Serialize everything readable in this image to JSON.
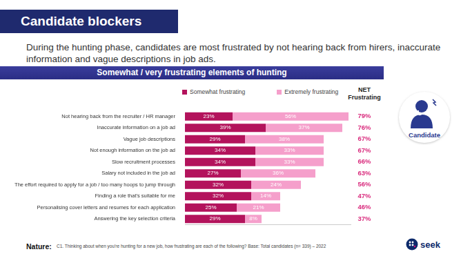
{
  "header": {
    "title": "Candidate blockers",
    "subtitle": "During the hunting phase, candidates are most frustrated by not hearing back from hirers, inaccurate information and vague descriptions in job ads."
  },
  "chart_data": {
    "type": "bar",
    "orientation": "horizontal",
    "stacked": true,
    "title": "Somewhat / very frustrating elements of hunting",
    "categories": [
      "Not hearing back from the recruiter / HR manager",
      "Inaccurate information on a job ad",
      "Vague job descriptions",
      "Not enough information on the job ad",
      "Slow recruitment processes",
      "Salary not included in the job ad",
      "The effort required to apply for a job / too many hoops to jump through",
      "Finding a role that's suitable for me",
      "Personalising cover letters and resumes for each application",
      "Answering the key selection criteria"
    ],
    "series": [
      {
        "name": "Somewhat frustrating",
        "color": "#b3135c",
        "values": [
          23,
          39,
          29,
          34,
          34,
          27,
          32,
          32,
          25,
          29
        ],
        "value_labels": [
          "23%",
          "39%",
          "29%",
          "34%",
          "34%",
          "27%",
          "32%",
          "32%",
          "25%",
          "29%"
        ]
      },
      {
        "name": "Extremely frustrating",
        "color": "#f59fcb",
        "values": [
          56,
          37,
          38,
          33,
          33,
          36,
          24,
          14,
          21,
          8
        ],
        "value_labels": [
          "56%",
          "37%",
          "38%",
          "33%",
          "33%",
          "36%",
          "24%",
          "14%",
          "21%",
          "8%"
        ]
      }
    ],
    "net": {
      "title": "NET Frustrating",
      "color": "#d92b7d",
      "values": [
        79,
        76,
        67,
        67,
        66,
        63,
        56,
        47,
        46,
        37
      ],
      "value_labels": [
        "79%",
        "76%",
        "67%",
        "67%",
        "66%",
        "63%",
        "56%",
        "47%",
        "46%",
        "37%"
      ]
    },
    "xlim": [
      0,
      80
    ],
    "grid": false,
    "data_labels": true,
    "tick_labels": "y",
    "legend": "top"
  },
  "icon": {
    "label": "Candidate"
  },
  "footer": {
    "source": "Nature:",
    "note": "C1. Thinking about when you're hunting for a new job, how frustrating are each of the following? Base: Total candidates (n= 339) – 2022",
    "logo": "seek"
  }
}
